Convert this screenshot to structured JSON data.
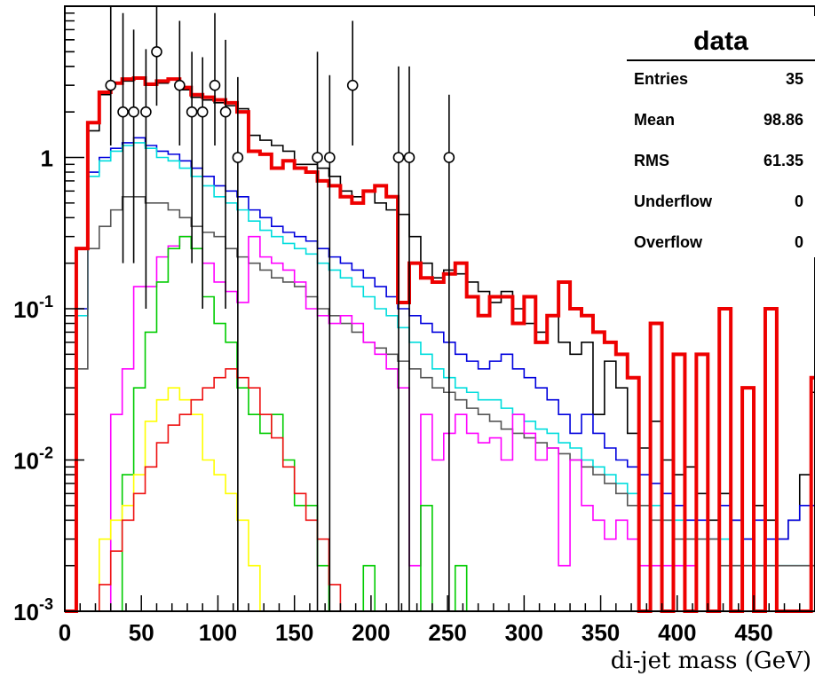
{
  "chart_data": {
    "type": "histogram",
    "title": "",
    "xlabel": "di-jet mass (GeV)",
    "ylabel": "",
    "xlim": [
      0,
      490
    ],
    "ylim": [
      0.001,
      10
    ],
    "yscale": "log",
    "bin_width": 7.5,
    "x_ticks": [
      0,
      50,
      100,
      150,
      200,
      250,
      300,
      350,
      400,
      450
    ],
    "y_ticks": [
      {
        "value": 1,
        "label": "1",
        "exp": ""
      },
      {
        "value": 0.1,
        "label": "10",
        "exp": "-1"
      },
      {
        "value": 0.01,
        "label": "10",
        "exp": "-2"
      },
      {
        "value": 0.001,
        "label": "10",
        "exp": "-3"
      }
    ],
    "stats_box": {
      "title": "data",
      "rows": [
        {
          "label": "Entries",
          "value": "35"
        },
        {
          "label": "Mean",
          "value": "98.86"
        },
        {
          "label": "RMS",
          "value": "61.35"
        },
        {
          "label": "Underflow",
          "value": "0"
        },
        {
          "label": "Overflow",
          "value": "0"
        }
      ]
    },
    "series": [
      {
        "color": "#000000",
        "width": 1.6,
        "values": [
          0.001,
          0.25,
          1.5,
          2.6,
          3.1,
          3.2,
          3.3,
          3.0,
          3.1,
          3.3,
          2.8,
          2.5,
          2.4,
          2.3,
          2.2,
          2.1,
          1.4,
          1.3,
          1.2,
          1.1,
          0.9,
          0.9,
          0.85,
          0.75,
          0.6,
          0.55,
          0.6,
          0.5,
          0.45,
          0.42,
          0.3,
          0.2,
          0.16,
          0.18,
          0.17,
          0.15,
          0.13,
          0.11,
          0.13,
          0.1,
          0.08,
          0.07,
          0.09,
          0.06,
          0.05,
          0.06,
          0.02,
          0.045,
          0.03,
          0.015,
          0.012,
          0.018,
          0.01,
          0.008,
          0.009,
          0.006,
          0.004,
          0.006,
          0.004,
          0.003,
          0.005,
          0.004,
          0.003,
          0.004,
          0.008,
          0.028
        ]
      },
      {
        "color": "#0000dd",
        "width": 1.6,
        "values": [
          0.001,
          0.1,
          0.8,
          1.0,
          1.15,
          1.25,
          1.35,
          1.2,
          1.1,
          1.05,
          0.95,
          0.85,
          0.75,
          0.65,
          0.6,
          0.55,
          0.45,
          0.4,
          0.35,
          0.32,
          0.3,
          0.28,
          0.25,
          0.22,
          0.2,
          0.18,
          0.16,
          0.14,
          0.12,
          0.1,
          0.09,
          0.08,
          0.07,
          0.06,
          0.05,
          0.045,
          0.04,
          0.045,
          0.05,
          0.04,
          0.035,
          0.03,
          0.025,
          0.02,
          0.015,
          0.02,
          0.015,
          0.012,
          0.01,
          0.009,
          0.008,
          0.007,
          0.006,
          0.005,
          0.004,
          0.004,
          0.003,
          0.005,
          0.004,
          0.003,
          0.004,
          0.003,
          0.003,
          0.004,
          0.005,
          0.005
        ]
      },
      {
        "color": "#00dddd",
        "width": 1.6,
        "values": [
          0.001,
          0.09,
          0.75,
          0.95,
          1.1,
          1.2,
          1.25,
          1.15,
          1.0,
          0.95,
          0.85,
          0.75,
          0.65,
          0.55,
          0.5,
          0.45,
          0.38,
          0.33,
          0.3,
          0.27,
          0.25,
          0.23,
          0.2,
          0.18,
          0.16,
          0.14,
          0.12,
          0.1,
          0.09,
          0.075,
          0.06,
          0.05,
          0.04,
          0.035,
          0.03,
          0.028,
          0.025,
          0.025,
          0.022,
          0.02,
          0.018,
          0.016,
          0.015,
          0.013,
          0.012,
          0.01,
          0.009,
          0.008,
          0.007,
          0.006,
          0.005,
          0.005,
          0.004,
          0.004,
          0.003,
          0.003,
          0.003,
          0.003,
          0.002,
          0.002,
          0.002,
          0.002,
          0.002,
          0.002,
          0.002,
          0.002
        ]
      },
      {
        "color": "#555555",
        "width": 1.6,
        "values": [
          0.001,
          0.04,
          0.25,
          0.35,
          0.45,
          0.55,
          0.55,
          0.5,
          0.5,
          0.45,
          0.4,
          0.35,
          0.32,
          0.3,
          0.25,
          0.22,
          0.2,
          0.18,
          0.16,
          0.15,
          0.14,
          0.12,
          0.1,
          0.09,
          0.08,
          0.07,
          0.06,
          0.055,
          0.05,
          0.045,
          0.04,
          0.035,
          0.03,
          0.028,
          0.025,
          0.022,
          0.02,
          0.018,
          0.016,
          0.015,
          0.014,
          0.013,
          0.012,
          0.011,
          0.01,
          0.009,
          0.008,
          0.007,
          0.006,
          0.005,
          0.005,
          0.004,
          0.004,
          0.003,
          0.003,
          0.003,
          0.003,
          0.002,
          0.002,
          0.002,
          0.002,
          0.002,
          0.002,
          0.002,
          0.002,
          0.002
        ]
      },
      {
        "color": "#ff00ff",
        "width": 1.6,
        "values": [
          0.001,
          0.001,
          0.001,
          0.001,
          0.02,
          0.04,
          0.14,
          0.14,
          0.22,
          0.26,
          0.3,
          0.25,
          0.2,
          0.15,
          0.13,
          0.11,
          0.3,
          0.22,
          0.2,
          0.18,
          0.15,
          0.1,
          0.09,
          0.08,
          0.09,
          0.08,
          0.06,
          0.05,
          0.04,
          0.03,
          0.002,
          0.02,
          0.01,
          0.015,
          0.02,
          0.015,
          0.013,
          0.014,
          0.01,
          0.02,
          0.015,
          0.01,
          0.012,
          0.002,
          0.01,
          0.005,
          0.004,
          0.003,
          0.004,
          0.003,
          0.002,
          0.002,
          0.002,
          0.002,
          0.002,
          0.001,
          0.001,
          0.001,
          0.001,
          0.001,
          0.001,
          0.001,
          0.001,
          0.001,
          0.001,
          0.001
        ]
      },
      {
        "color": "#00cc00",
        "width": 1.6,
        "values": [
          0.001,
          0.001,
          0.001,
          0.001,
          0.001,
          0.008,
          0.03,
          0.07,
          0.15,
          0.25,
          0.3,
          0.25,
          0.12,
          0.08,
          0.06,
          0.03,
          0.02,
          0.015,
          0.02,
          0.01,
          0.005,
          0.005,
          0.002,
          0.001,
          0.001,
          0.001,
          0.002,
          0.001,
          0.001,
          0.001,
          0.001,
          0.005,
          0.001,
          0.001,
          0.002,
          0.001,
          0.001,
          0.001,
          0.001,
          0.001,
          0.001,
          0.001,
          0.001,
          0.001,
          0.001,
          0.001,
          0.001,
          0.001,
          0.001,
          0.001,
          0.001,
          0.001,
          0.001,
          0.001,
          0.001,
          0.001,
          0.001,
          0.001,
          0.001,
          0.001,
          0.001,
          0.001,
          0.001,
          0.001,
          0.001,
          0.001
        ]
      },
      {
        "color": "#ffff00",
        "width": 1.6,
        "values": [
          0.001,
          0.001,
          0.001,
          0.003,
          0.004,
          0.005,
          0.008,
          0.018,
          0.025,
          0.03,
          0.025,
          0.02,
          0.01,
          0.008,
          0.006,
          0.004,
          0.002,
          0.001,
          0.001,
          0.001,
          0.001,
          0.001,
          0.001,
          0.001,
          0.001,
          0.001,
          0.001,
          0.001,
          0.001,
          0.001,
          0.001,
          0.001,
          0.001,
          0.001,
          0.001,
          0.001,
          0.001,
          0.001,
          0.001,
          0.001,
          0.001,
          0.001,
          0.001,
          0.001,
          0.001,
          0.001,
          0.001,
          0.001,
          0.001,
          0.001,
          0.001,
          0.001,
          0.001,
          0.001,
          0.001,
          0.001,
          0.001,
          0.001,
          0.001,
          0.001,
          0.001,
          0.001,
          0.001,
          0.001,
          0.001,
          0.001
        ]
      },
      {
        "color": "#ee1111",
        "width": 1.6,
        "values": [
          0.001,
          0.001,
          0.001,
          0.0015,
          0.0025,
          0.004,
          0.006,
          0.009,
          0.013,
          0.017,
          0.02,
          0.025,
          0.03,
          0.035,
          0.04,
          0.035,
          0.03,
          0.02,
          0.014,
          0.009,
          0.006,
          0.004,
          0.003,
          0.0015,
          0.001,
          0.001,
          0.001,
          0.001,
          0.001,
          0.001,
          0.001,
          0.001,
          0.001,
          0.001,
          0.001,
          0.001,
          0.001,
          0.001,
          0.001,
          0.001,
          0.001,
          0.001,
          0.001,
          0.001,
          0.001,
          0.001,
          0.001,
          0.001,
          0.001,
          0.001,
          0.001,
          0.001,
          0.001,
          0.001,
          0.001,
          0.001,
          0.001,
          0.001,
          0.001,
          0.001,
          0.001,
          0.001,
          0.001,
          0.001,
          0.001,
          0.001
        ]
      },
      {
        "color": "#ee0000",
        "width": 4,
        "values": [
          0.001,
          0.25,
          1.7,
          2.7,
          3.1,
          3.3,
          3.35,
          3.05,
          3.2,
          3.3,
          2.9,
          2.6,
          2.5,
          2.4,
          2.3,
          2.0,
          1.1,
          1.05,
          0.85,
          0.95,
          0.85,
          0.8,
          0.7,
          0.65,
          0.55,
          0.5,
          0.6,
          0.65,
          0.55,
          0.11,
          0.2,
          0.16,
          0.15,
          0.17,
          0.2,
          0.12,
          0.09,
          0.12,
          0.12,
          0.08,
          0.12,
          0.06,
          0.09,
          0.15,
          0.1,
          0.09,
          0.07,
          0.06,
          0.05,
          0.035,
          0.001,
          0.08,
          0.001,
          0.05,
          0.001,
          0.05,
          0.001,
          0.1,
          0.001,
          0.03,
          0.001,
          0.1,
          0.001,
          0.001,
          0.001,
          0.035
        ]
      }
    ],
    "points": [
      {
        "x": 30,
        "y": 3,
        "err_lo": 1.8,
        "err_hi": 11
      },
      {
        "x": 38,
        "y": 2,
        "err_lo": 1.8,
        "err_hi": 7
      },
      {
        "x": 45,
        "y": 2,
        "err_lo": 1.8,
        "err_hi": 5
      },
      {
        "x": 53,
        "y": 2,
        "err_lo": 1.9,
        "err_hi": 3.2
      },
      {
        "x": 60,
        "y": 5,
        "err_lo": 2.8,
        "err_hi": 15
      },
      {
        "x": 75,
        "y": 3,
        "err_lo": 1.8,
        "err_hi": 5
      },
      {
        "x": 83,
        "y": 2,
        "err_lo": 1.8,
        "err_hi": 3
      },
      {
        "x": 90,
        "y": 2,
        "err_lo": 1.9,
        "err_hi": 2.6
      },
      {
        "x": 98,
        "y": 3,
        "err_lo": 1.8,
        "err_hi": 6
      },
      {
        "x": 105,
        "y": 2,
        "err_lo": 1.9,
        "err_hi": 4
      },
      {
        "x": 113,
        "y": 1,
        "err_lo": 0.999,
        "err_hi": 2.4
      },
      {
        "x": 165,
        "y": 1,
        "err_lo": 0.999,
        "err_hi": 4
      },
      {
        "x": 173,
        "y": 1,
        "err_lo": 0.999,
        "err_hi": 2.5
      },
      {
        "x": 188,
        "y": 3,
        "err_lo": 1.8,
        "err_hi": 5
      },
      {
        "x": 218,
        "y": 1,
        "err_lo": 0.999,
        "err_hi": 3
      },
      {
        "x": 225,
        "y": 1,
        "err_lo": 0.999,
        "err_hi": 3
      },
      {
        "x": 251,
        "y": 1,
        "err_lo": 0.999,
        "err_hi": 1.6
      }
    ]
  }
}
